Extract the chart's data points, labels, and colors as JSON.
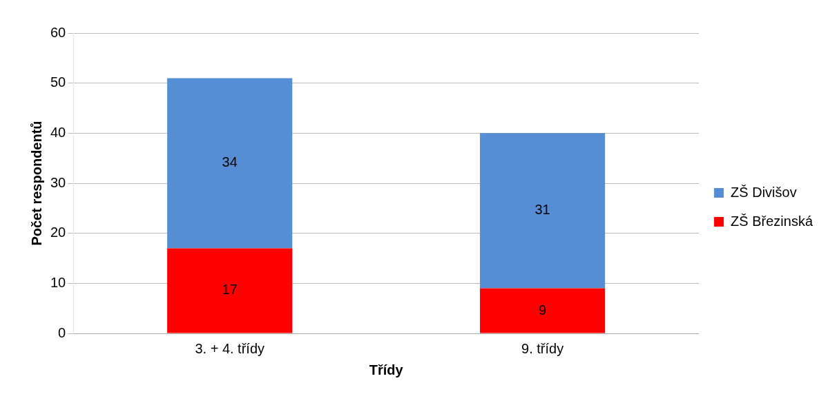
{
  "chart_data": {
    "type": "bar",
    "stacked": true,
    "xlabel": "Třídy",
    "ylabel": "Počet respondentů",
    "categories": [
      "3. + 4. třídy",
      "9. třídy"
    ],
    "series": [
      {
        "name": "ZŠ Březinská",
        "color": "#ff0000",
        "values": [
          17,
          9
        ]
      },
      {
        "name": "ZŠ Divišov",
        "color": "#558ed5",
        "values": [
          34,
          31
        ]
      }
    ],
    "ylim": [
      0,
      60
    ],
    "yticks": [
      0,
      10,
      20,
      30,
      40,
      50,
      60
    ],
    "grid": "y",
    "legend": "right",
    "data_labels": true
  }
}
